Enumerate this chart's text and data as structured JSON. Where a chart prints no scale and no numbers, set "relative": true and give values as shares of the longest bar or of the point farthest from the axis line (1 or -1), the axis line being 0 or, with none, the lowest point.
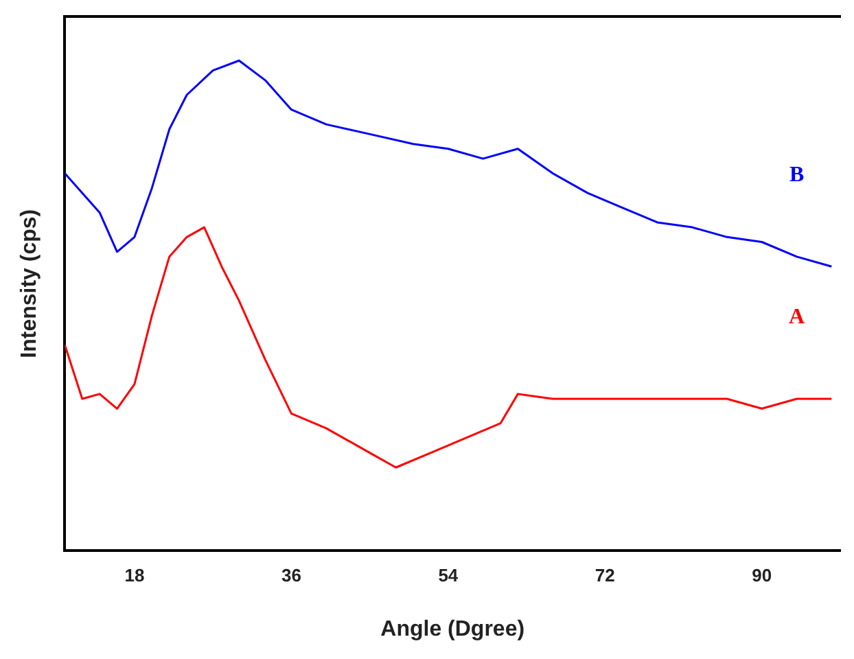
{
  "chart_data": {
    "type": "line",
    "xlabel": "Angle (Dgree)",
    "ylabel": "Intensity (cps)",
    "relative": true,
    "xlim": [
      10,
      99
    ],
    "xticks": [
      18,
      36,
      54,
      72,
      90
    ],
    "grid": false,
    "legend": false,
    "marker": "none",
    "series": [
      {
        "name": "B",
        "color": "#0000ff",
        "x": [
          10,
          14,
          16,
          18,
          20,
          22,
          24,
          27,
          30,
          33,
          36,
          40,
          45,
          50,
          54,
          58,
          62,
          66,
          70,
          74,
          78,
          82,
          86,
          90,
          94,
          98
        ],
        "values": [
          0.77,
          0.69,
          0.61,
          0.64,
          0.74,
          0.86,
          0.93,
          0.98,
          1,
          0.96,
          0.9,
          0.87,
          0.85,
          0.83,
          0.82,
          0.8,
          0.82,
          0.77,
          0.73,
          0.7,
          0.67,
          0.66,
          0.64,
          0.63,
          0.6,
          0.58
        ]
      },
      {
        "name": "A",
        "color": "#ff0000",
        "x": [
          10,
          12,
          14,
          16,
          18,
          20,
          22,
          24,
          26,
          28,
          30,
          33,
          36,
          40,
          45,
          48,
          52,
          56,
          60,
          62,
          66,
          70,
          74,
          78,
          82,
          86,
          90,
          94,
          98
        ],
        "values": [
          0.42,
          0.31,
          0.32,
          0.29,
          0.34,
          0.48,
          0.6,
          0.64,
          0.66,
          0.58,
          0.51,
          0.39,
          0.28,
          0.25,
          0.2,
          0.17,
          0.2,
          0.23,
          0.26,
          0.32,
          0.31,
          0.31,
          0.31,
          0.31,
          0.31,
          0.31,
          0.29,
          0.31,
          0.31
        ]
      }
    ]
  }
}
